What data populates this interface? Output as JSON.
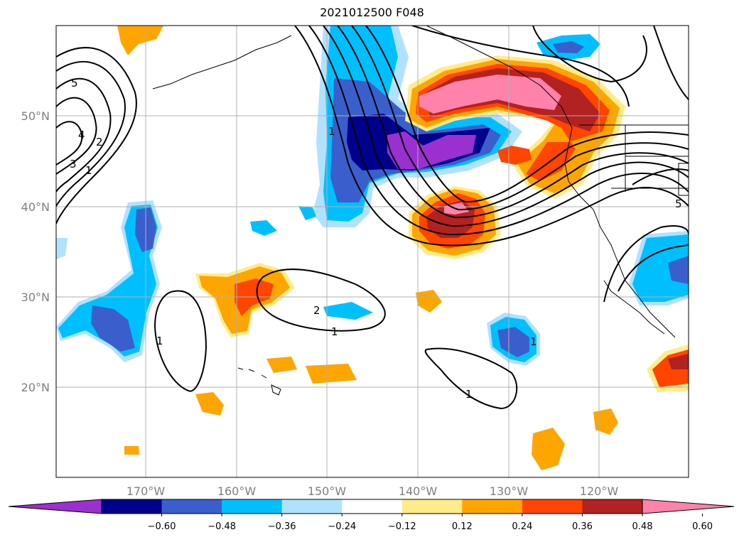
{
  "title": "2021012500 F048",
  "map": {
    "lat_labels": [
      "50°N",
      "40°N",
      "30°N",
      "20°N"
    ],
    "lon_labels": [
      "170°W",
      "160°W",
      "150°W",
      "140°W",
      "130°W",
      "120°W"
    ],
    "contour_labels": [
      "5",
      "4",
      "3",
      "2",
      "1",
      "1",
      "2",
      "1",
      "1",
      "1",
      "1",
      "5"
    ]
  },
  "colorbar": {
    "ticks": [
      "−0.60",
      "−0.48",
      "−0.36",
      "−0.24",
      "−0.12",
      "0.12",
      "0.24",
      "0.36",
      "0.48",
      "0.60"
    ],
    "colors": [
      "#9b30d0",
      "#00008b",
      "#3a5fcd",
      "#00bfff",
      "#b0e2ff",
      "#ffffff",
      "#ffec8b",
      "#ffa500",
      "#ff4500",
      "#b22222",
      "#ff82ab"
    ]
  }
}
